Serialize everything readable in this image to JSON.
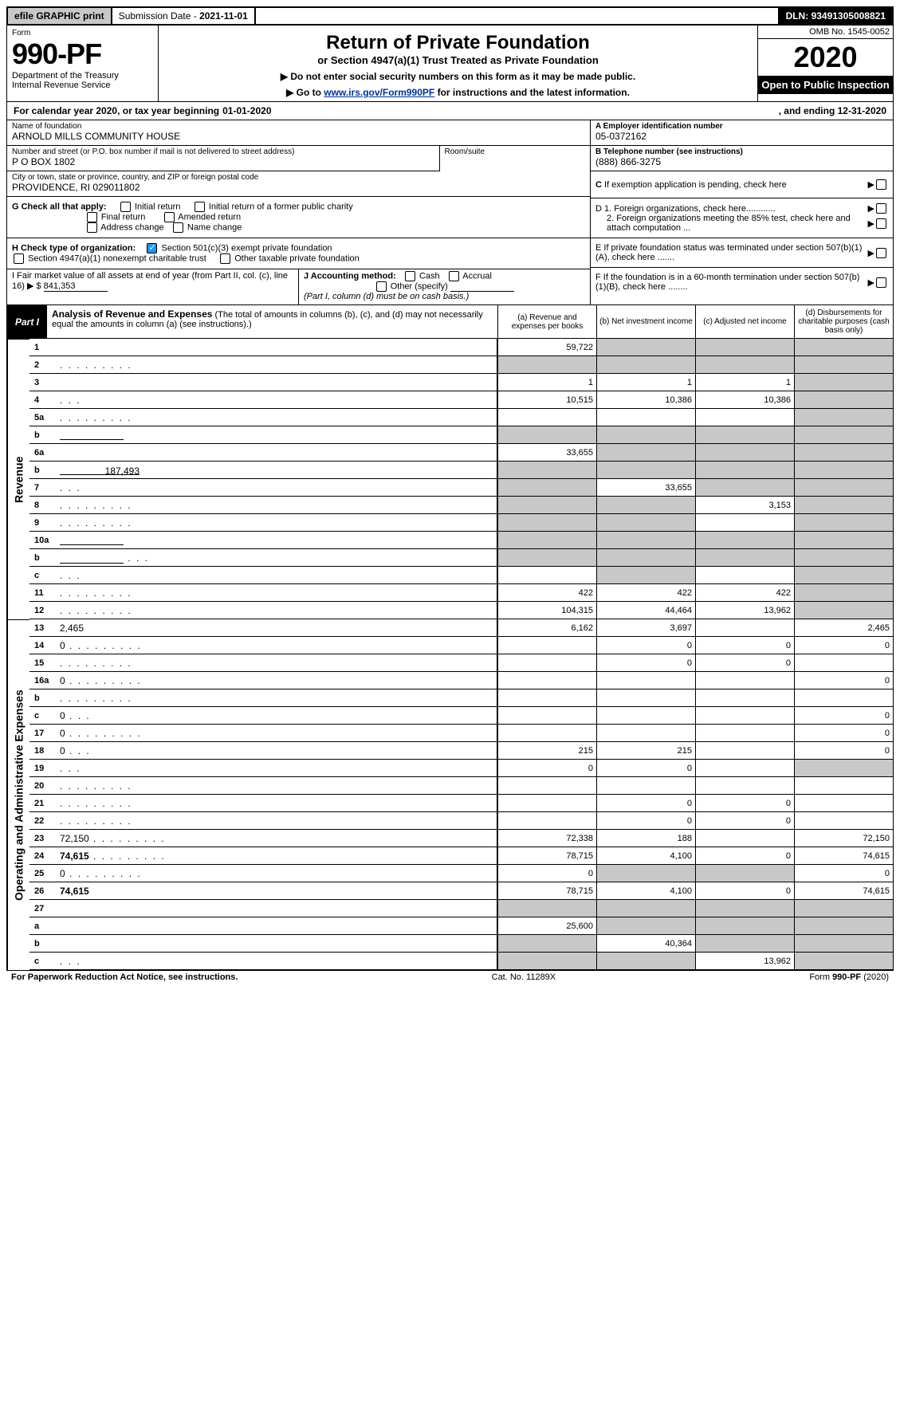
{
  "topbar": {
    "efile": "efile GRAPHIC print",
    "submission_label": "Submission Date - ",
    "submission_date": "2021-11-01",
    "dln_label": "DLN: ",
    "dln": "93491305008821"
  },
  "header": {
    "form_label": "Form",
    "form_number": "990-PF",
    "dept1": "Department of the Treasury",
    "dept2": "Internal Revenue Service",
    "title": "Return of Private Foundation",
    "subtitle": "or Section 4947(a)(1) Trust Treated as Private Foundation",
    "instr1": "▶ Do not enter social security numbers on this form as it may be made public.",
    "instr2_prefix": "▶ Go to ",
    "instr2_link": "www.irs.gov/Form990PF",
    "instr2_suffix": " for instructions and the latest information.",
    "omb": "OMB No. 1545-0052",
    "year": "2020",
    "open": "Open to Public Inspection"
  },
  "calendar": {
    "prefix": "For calendar year 2020, or tax year beginning ",
    "begin": "01-01-2020",
    "mid": ", and ending ",
    "end": "12-31-2020"
  },
  "foundation": {
    "name_label": "Name of foundation",
    "name": "ARNOLD MILLS COMMUNITY HOUSE",
    "ein_label": "A Employer identification number",
    "ein": "05-0372162",
    "addr_label": "Number and street (or P.O. box number if mail is not delivered to street address)",
    "addr": "P O BOX 1802",
    "room_label": "Room/suite",
    "phone_label": "B Telephone number (see instructions)",
    "phone": "(888) 866-3275",
    "city_label": "City or town, state or province, country, and ZIP or foreign postal code",
    "city": "PROVIDENCE, RI  029011802"
  },
  "sectionC": "C If exemption application is pending, check here",
  "sectionG": {
    "label": "G Check all that apply:",
    "o1": "Initial return",
    "o2": "Initial return of a former public charity",
    "o3": "Final return",
    "o4": "Amended return",
    "o5": "Address change",
    "o6": "Name change"
  },
  "sectionD": {
    "d1": "D 1. Foreign organizations, check here............",
    "d2": "2. Foreign organizations meeting the 85% test, check here and attach computation ..."
  },
  "sectionE": "E  If private foundation status was terminated under section 507(b)(1)(A), check here .......",
  "sectionF": "F  If the foundation is in a 60-month termination under section 507(b)(1)(B), check here ........",
  "sectionH": {
    "label": "H Check type of organization:",
    "o1": "Section 501(c)(3) exempt private foundation",
    "o2": "Section 4947(a)(1) nonexempt charitable trust",
    "o3": "Other taxable private foundation"
  },
  "sectionI": {
    "label": "I Fair market value of all assets at end of year (from Part II, col. (c), line 16) ▶",
    "amount_prefix": "$ ",
    "amount": "841,353"
  },
  "sectionJ": {
    "label": "J Accounting method:",
    "o1": "Cash",
    "o2": "Accrual",
    "o3": "Other (specify)",
    "note": "(Part I, column (d) must be on cash basis.)"
  },
  "partI": {
    "badge": "Part I",
    "title": "Analysis of Revenue and Expenses",
    "note": "(The total of amounts in columns (b), (c), and (d) may not necessarily equal the amounts in column (a) (see instructions).)",
    "colA": "(a)   Revenue and expenses per books",
    "colB": "(b)  Net investment income",
    "colC": "(c)  Adjusted net income",
    "colD": "(d)  Disbursements for charitable purposes (cash basis only)"
  },
  "sides": {
    "revenue": "Revenue",
    "expenses": "Operating and Administrative Expenses"
  },
  "rows": {
    "r1": {
      "n": "1",
      "d": "",
      "a": "59,722",
      "b": "",
      "c": "",
      "shadeB": true,
      "shadeC": true,
      "shadeD": true
    },
    "r2": {
      "n": "2",
      "d": "",
      "dots": true,
      "a": "",
      "b": "",
      "c": "",
      "shadeA": true,
      "shadeB": true,
      "shadeC": true,
      "shadeD": true
    },
    "r3": {
      "n": "3",
      "d": "",
      "a": "1",
      "b": "1",
      "c": "1",
      "shadeD": true
    },
    "r4": {
      "n": "4",
      "d": "",
      "dots": "short",
      "a": "10,515",
      "b": "10,386",
      "c": "10,386",
      "shadeD": true
    },
    "r5a": {
      "n": "5a",
      "d": "",
      "dots": true,
      "a": "",
      "b": "",
      "c": "",
      "shadeD": true
    },
    "r5b": {
      "n": "b",
      "d": "",
      "inline": true,
      "a": "",
      "b": "",
      "c": "",
      "shadeA": true,
      "shadeB": true,
      "shadeC": true,
      "shadeD": true
    },
    "r6a": {
      "n": "6a",
      "d": "",
      "a": "33,655",
      "b": "",
      "c": "",
      "shadeB": true,
      "shadeC": true,
      "shadeD": true
    },
    "r6b": {
      "n": "b",
      "d": "",
      "inlineVal": "187,493",
      "a": "",
      "b": "",
      "c": "",
      "shadeA": true,
      "shadeB": true,
      "shadeC": true,
      "shadeD": true
    },
    "r7": {
      "n": "7",
      "d": "",
      "dots": "short",
      "a": "",
      "b": "33,655",
      "c": "",
      "shadeA": true,
      "shadeC": true,
      "shadeD": true
    },
    "r8": {
      "n": "8",
      "d": "",
      "dots": true,
      "a": "",
      "b": "",
      "c": "3,153",
      "shadeA": true,
      "shadeB": true,
      "shadeD": true
    },
    "r9": {
      "n": "9",
      "d": "",
      "dots": true,
      "a": "",
      "b": "",
      "c": "",
      "shadeA": true,
      "shadeB": true,
      "shadeD": true
    },
    "r10a": {
      "n": "10a",
      "d": "",
      "inline": true,
      "a": "",
      "b": "",
      "c": "",
      "shadeA": true,
      "shadeB": true,
      "shadeC": true,
      "shadeD": true
    },
    "r10b": {
      "n": "b",
      "d": "",
      "dots": "short",
      "inline": true,
      "a": "",
      "b": "",
      "c": "",
      "shadeA": true,
      "shadeB": true,
      "shadeC": true,
      "shadeD": true
    },
    "r10c": {
      "n": "c",
      "d": "",
      "dots": "short",
      "a": "",
      "b": "",
      "c": "",
      "shadeB": true,
      "shadeD": true
    },
    "r11": {
      "n": "11",
      "d": "",
      "dots": true,
      "a": "422",
      "b": "422",
      "c": "422",
      "shadeD": true
    },
    "r12": {
      "n": "12",
      "d": "",
      "bold": true,
      "dots": true,
      "a": "104,315",
      "b": "44,464",
      "c": "13,962",
      "shadeD": true
    },
    "r13": {
      "n": "13",
      "d": "2,465",
      "a": "6,162",
      "b": "3,697",
      "c": ""
    },
    "r14": {
      "n": "14",
      "d": "0",
      "dots": true,
      "a": "",
      "b": "0",
      "c": "0"
    },
    "r15": {
      "n": "15",
      "d": "",
      "dots": true,
      "a": "",
      "b": "0",
      "c": "0"
    },
    "r16a": {
      "n": "16a",
      "d": "0",
      "dots": true,
      "a": "",
      "b": "",
      "c": ""
    },
    "r16b": {
      "n": "b",
      "d": "",
      "dots": true,
      "a": "",
      "b": "",
      "c": ""
    },
    "r16c": {
      "n": "c",
      "d": "0",
      "dots": "short",
      "a": "",
      "b": "",
      "c": ""
    },
    "r17": {
      "n": "17",
      "d": "0",
      "dots": true,
      "a": "",
      "b": "",
      "c": ""
    },
    "r18": {
      "n": "18",
      "d": "0",
      "dots": "short",
      "a": "215",
      "b": "215",
      "c": ""
    },
    "r19": {
      "n": "19",
      "d": "",
      "dots": "short",
      "a": "0",
      "b": "0",
      "c": "",
      "shadeD": true
    },
    "r20": {
      "n": "20",
      "d": "",
      "dots": true,
      "a": "",
      "b": "",
      "c": ""
    },
    "r21": {
      "n": "21",
      "d": "",
      "dots": true,
      "a": "",
      "b": "0",
      "c": "0"
    },
    "r22": {
      "n": "22",
      "d": "",
      "dots": true,
      "a": "",
      "b": "0",
      "c": "0"
    },
    "r23": {
      "n": "23",
      "d": "72,150",
      "dots": true,
      "a": "72,338",
      "b": "188",
      "c": ""
    },
    "r24": {
      "n": "24",
      "d": "74,615",
      "bold": true,
      "dots": true,
      "a": "78,715",
      "b": "4,100",
      "c": "0"
    },
    "r25": {
      "n": "25",
      "d": "0",
      "dots": true,
      "a": "0",
      "b": "",
      "c": "",
      "shadeB": true,
      "shadeC": true
    },
    "r26": {
      "n": "26",
      "d": "74,615",
      "bold": true,
      "a": "78,715",
      "b": "4,100",
      "c": "0"
    },
    "r27": {
      "n": "27",
      "d": "",
      "a": "",
      "b": "",
      "c": "",
      "shadeA": true,
      "shadeB": true,
      "shadeC": true,
      "shadeD": true
    },
    "r27a": {
      "n": "a",
      "d": "",
      "bold": true,
      "a": "25,600",
      "b": "",
      "c": "",
      "shadeB": true,
      "shadeC": true,
      "shadeD": true
    },
    "r27b": {
      "n": "b",
      "d": "",
      "bold": true,
      "a": "",
      "b": "40,364",
      "c": "",
      "shadeA": true,
      "shadeC": true,
      "shadeD": true
    },
    "r27c": {
      "n": "c",
      "d": "",
      "bold": true,
      "dots": "short",
      "a": "",
      "b": "",
      "c": "13,962",
      "shadeA": true,
      "shadeB": true,
      "shadeD": true
    }
  },
  "footer": {
    "left": "For Paperwork Reduction Act Notice, see instructions.",
    "mid": "Cat. No. 11289X",
    "right_prefix": "Form ",
    "right_form": "990-PF",
    "right_suffix": " (2020)"
  },
  "colors": {
    "shade": "#c8c8c8",
    "link": "#003399"
  }
}
